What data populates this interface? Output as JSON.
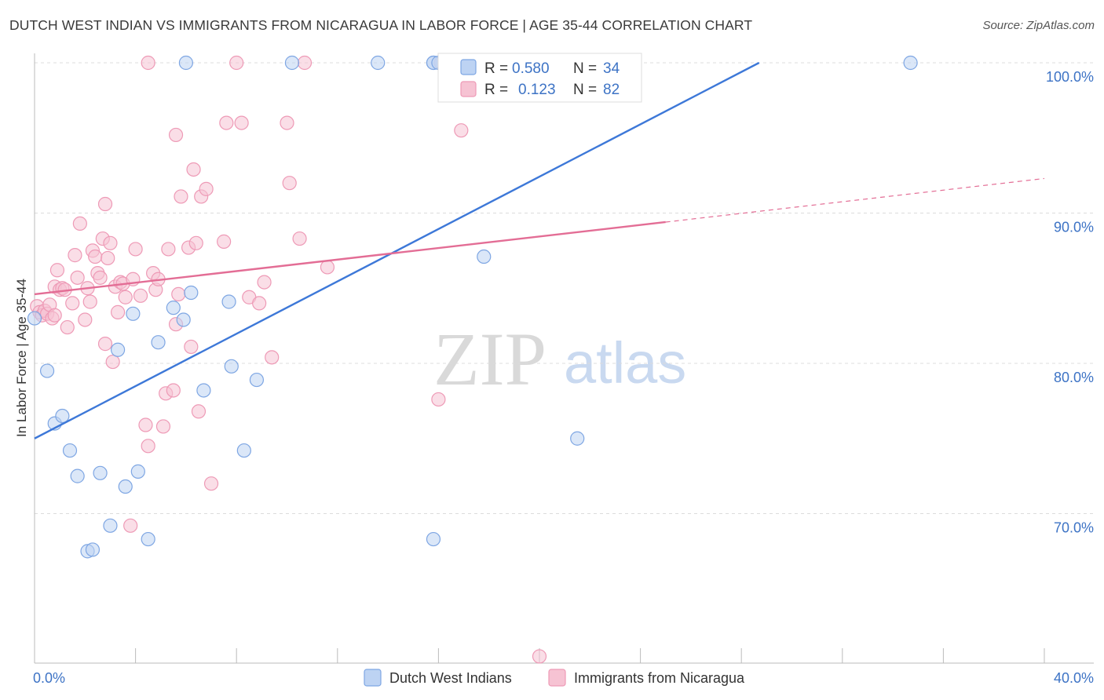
{
  "title": "DUTCH WEST INDIAN VS IMMIGRANTS FROM NICARAGUA IN LABOR FORCE | AGE 35-44 CORRELATION CHART",
  "source": "Source: ZipAtlas.com",
  "watermark": {
    "zip": "ZIP",
    "atlas": "atlas"
  },
  "colors": {
    "blue": "#3d78d8",
    "blue_fill": "#bdd3f3",
    "blue_stroke": "#7ea6e3",
    "pink": "#e36d95",
    "pink_fill": "#f6c3d3",
    "pink_stroke": "#ee9ab6",
    "tick_text": "#3d73c5",
    "grid": "#dcdcdc"
  },
  "stats": {
    "r_label": "R =",
    "n_label": "N =",
    "blue": {
      "r": "0.580",
      "n": "34"
    },
    "pink": {
      "r": "0.123",
      "n": "82"
    }
  },
  "chart_data": {
    "type": "scatter",
    "title": "DUTCH WEST INDIAN VS IMMIGRANTS FROM NICARAGUA IN LABOR FORCE | AGE 35-44 CORRELATION CHART",
    "xlabel": "",
    "ylabel": "In Labor Force | Age 35-44",
    "xlim": [
      0,
      40
    ],
    "ylim": [
      60.5,
      101
    ],
    "x_tick_labels": {
      "left": "0.0%",
      "right": "40.0%"
    },
    "y_ticks": [
      {
        "value": 100,
        "label": "100.0%"
      },
      {
        "value": 90,
        "label": "90.0%"
      },
      {
        "value": 80,
        "label": "80.0%"
      },
      {
        "value": 70,
        "label": "70.0%"
      }
    ],
    "grid": true,
    "legend": [
      "Dutch West Indians",
      "Immigrants from Nicaragua"
    ],
    "series": [
      {
        "name": "Dutch West Indians",
        "color": "blue",
        "trend": {
          "x0": 0,
          "y0": 75.0,
          "x1": 28.7,
          "y1": 100.0,
          "dashed_to": null
        },
        "points": [
          [
            0.0,
            83.0
          ],
          [
            0.5,
            79.5
          ],
          [
            0.8,
            76.0
          ],
          [
            1.1,
            76.5
          ],
          [
            1.4,
            74.2
          ],
          [
            1.7,
            72.5
          ],
          [
            2.1,
            67.5
          ],
          [
            2.3,
            67.6
          ],
          [
            2.6,
            72.7
          ],
          [
            3.0,
            69.2
          ],
          [
            3.3,
            80.9
          ],
          [
            3.6,
            71.8
          ],
          [
            3.9,
            83.3
          ],
          [
            4.1,
            72.8
          ],
          [
            4.5,
            68.3
          ],
          [
            4.9,
            81.4
          ],
          [
            5.5,
            83.7
          ],
          [
            5.9,
            82.9
          ],
          [
            6.2,
            84.7
          ],
          [
            6.7,
            78.2
          ],
          [
            7.7,
            84.1
          ],
          [
            7.8,
            79.8
          ],
          [
            8.3,
            74.2
          ],
          [
            8.8,
            78.9
          ],
          [
            6.0,
            100.0
          ],
          [
            10.2,
            100.0
          ],
          [
            13.6,
            100.0
          ],
          [
            15.8,
            68.3
          ],
          [
            15.8,
            100.0
          ],
          [
            17.8,
            87.1
          ],
          [
            15.8,
            100.0
          ],
          [
            16.0,
            100.0
          ],
          [
            21.5,
            75.0
          ],
          [
            34.7,
            100.0
          ]
        ]
      },
      {
        "name": "Immigrants from Nicaragua",
        "color": "pink",
        "trend": {
          "x0": 0,
          "y0": 84.6,
          "x1": 25.0,
          "y1": 89.4,
          "dashed_to": {
            "x": 40.0,
            "y": 92.3
          }
        },
        "points": [
          [
            0.1,
            83.8
          ],
          [
            0.2,
            83.4
          ],
          [
            0.3,
            83.2
          ],
          [
            0.4,
            83.5
          ],
          [
            0.5,
            83.3
          ],
          [
            0.6,
            83.9
          ],
          [
            0.7,
            83.0
          ],
          [
            0.8,
            83.2
          ],
          [
            0.8,
            85.1
          ],
          [
            0.9,
            86.2
          ],
          [
            1.0,
            84.9
          ],
          [
            1.1,
            85.0
          ],
          [
            1.2,
            84.9
          ],
          [
            1.3,
            82.4
          ],
          [
            1.5,
            84.0
          ],
          [
            1.6,
            87.2
          ],
          [
            1.7,
            85.7
          ],
          [
            1.8,
            89.3
          ],
          [
            2.0,
            82.9
          ],
          [
            2.1,
            85.0
          ],
          [
            2.2,
            84.1
          ],
          [
            2.3,
            87.5
          ],
          [
            2.4,
            87.1
          ],
          [
            2.5,
            86.0
          ],
          [
            2.6,
            85.7
          ],
          [
            2.7,
            88.3
          ],
          [
            2.8,
            90.6
          ],
          [
            2.8,
            81.3
          ],
          [
            2.9,
            87.0
          ],
          [
            3.0,
            88.0
          ],
          [
            3.1,
            80.1
          ],
          [
            3.2,
            85.1
          ],
          [
            3.3,
            83.4
          ],
          [
            3.4,
            85.4
          ],
          [
            3.5,
            85.3
          ],
          [
            3.6,
            84.4
          ],
          [
            3.8,
            69.2
          ],
          [
            3.9,
            85.6
          ],
          [
            4.0,
            87.6
          ],
          [
            4.2,
            84.5
          ],
          [
            4.4,
            75.9
          ],
          [
            4.5,
            74.5
          ],
          [
            4.7,
            86.0
          ],
          [
            4.8,
            84.9
          ],
          [
            4.9,
            85.6
          ],
          [
            5.1,
            75.8
          ],
          [
            5.2,
            78.0
          ],
          [
            5.3,
            87.6
          ],
          [
            5.5,
            78.2
          ],
          [
            5.6,
            82.6
          ],
          [
            5.7,
            84.6
          ],
          [
            5.8,
            91.1
          ],
          [
            6.1,
            87.7
          ],
          [
            6.2,
            81.1
          ],
          [
            6.4,
            88.0
          ],
          [
            6.5,
            76.8
          ],
          [
            6.6,
            91.1
          ],
          [
            6.8,
            91.6
          ],
          [
            7.0,
            72.0
          ],
          [
            7.5,
            88.1
          ],
          [
            5.6,
            95.2
          ],
          [
            6.3,
            92.9
          ],
          [
            7.6,
            96.0
          ],
          [
            8.2,
            96.0
          ],
          [
            8.5,
            84.4
          ],
          [
            8.9,
            84.0
          ],
          [
            9.1,
            85.4
          ],
          [
            9.4,
            80.4
          ],
          [
            10.0,
            96.0
          ],
          [
            10.1,
            92.0
          ],
          [
            10.5,
            88.3
          ],
          [
            11.6,
            86.4
          ],
          [
            4.5,
            100.0
          ],
          [
            8.0,
            100.0
          ],
          [
            10.7,
            100.0
          ],
          [
            16.1,
            100.0
          ],
          [
            16.3,
            100.0
          ],
          [
            16.9,
            95.5
          ],
          [
            16.0,
            77.6
          ],
          [
            19.5,
            100.0
          ],
          [
            20.5,
            100.0
          ],
          [
            20.0,
            60.5
          ]
        ]
      }
    ]
  }
}
